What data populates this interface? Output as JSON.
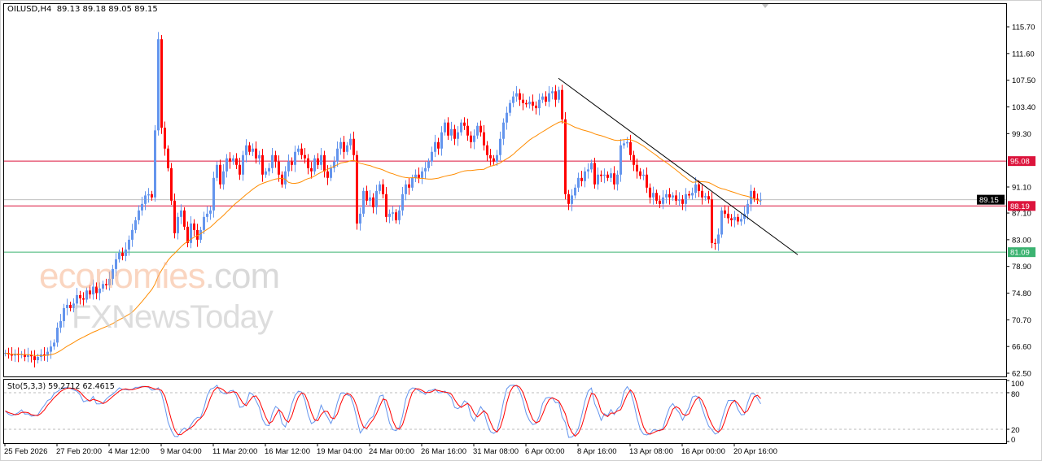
{
  "header": {
    "symbol": "OILUSD,H4",
    "ohlc": "89.13 89.18 89.05 89.15"
  },
  "indicator": {
    "label": "Sto(5,3,3) 59.2712 62.4615",
    "levels": [
      "100",
      "80",
      "20",
      "0"
    ]
  },
  "watermark": {
    "brand1": "economies",
    "brand1_suffix": ".com",
    "brand2": "FXNewsToday"
  },
  "colors": {
    "up": "#6495ED",
    "down": "#FF0000",
    "ma": "#FF8C00",
    "resistance": "#DC143C",
    "support": "#3CB371",
    "current": "#C0C0C0",
    "stoch_main": "#6495ED",
    "stoch_signal": "#FF0000"
  },
  "chart_data": {
    "type": "candlestick",
    "symbol": "OILUSD",
    "timeframe": "H4",
    "ylim": [
      62.5,
      115.7
    ],
    "y_ticks": [
      "115.70",
      "111.60",
      "107.50",
      "103.40",
      "99.30",
      "91.10",
      "87.10",
      "83.00",
      "78.90",
      "74.80",
      "70.70",
      "66.60",
      "62.50"
    ],
    "x_ticks": [
      {
        "bar": 0,
        "label": "25 Feb 2026"
      },
      {
        "bar": 16,
        "label": "27 Feb 20:00"
      },
      {
        "bar": 32,
        "label": "4 Mar 12:00"
      },
      {
        "bar": 48,
        "label": "9 Mar 04:00"
      },
      {
        "bar": 64,
        "label": "11 Mar 20:00"
      },
      {
        "bar": 80,
        "label": "16 Mar 12:00"
      },
      {
        "bar": 96,
        "label": "19 Mar 04:00"
      },
      {
        "bar": 112,
        "label": "24 Mar 00:00"
      },
      {
        "bar": 128,
        "label": "26 Mar 16:00"
      },
      {
        "bar": 144,
        "label": "31 Mar 08:00"
      },
      {
        "bar": 160,
        "label": "6 Apr 00:00"
      },
      {
        "bar": 176,
        "label": "8 Apr 16:00"
      },
      {
        "bar": 192,
        "label": "13 Apr 08:00"
      },
      {
        "bar": 208,
        "label": "16 Apr 00:00"
      },
      {
        "bar": 224,
        "label": "20 Apr 16:00"
      }
    ],
    "closes": [
      65.6,
      65.4,
      65.2,
      65.5,
      65.3,
      65.4,
      65.0,
      65.3,
      65.1,
      64.5,
      65.0,
      65.4,
      65.2,
      65.8,
      66.6,
      67.2,
      69.5,
      70.5,
      72.5,
      73.0,
      72.5,
      73.2,
      74.5,
      74.0,
      73.8,
      75.2,
      74.6,
      75.8,
      74.8,
      75.5,
      76.2,
      76.0,
      77.0,
      78.5,
      80.0,
      81.0,
      80.5,
      81.5,
      83.0,
      84.5,
      86.0,
      87.5,
      88.5,
      89.8,
      90.0,
      89.5,
      99.8,
      113.8,
      100.2,
      97.0,
      94.0,
      89.0,
      84.0,
      86.5,
      87.5,
      85.0,
      82.5,
      85.5,
      84.5,
      83.0,
      84.5,
      86.5,
      87.0,
      87.5,
      92.5,
      94.5,
      91.5,
      93.5,
      95.5,
      95.0,
      95.5,
      94.5,
      93.0,
      96.0,
      97.5,
      96.5,
      97.0,
      95.5,
      96.0,
      93.0,
      93.5,
      94.0,
      96.0,
      95.0,
      93.0,
      91.5,
      93.5,
      95.0,
      94.5,
      96.5,
      97.0,
      96.0,
      95.5,
      94.0,
      93.5,
      95.5,
      94.5,
      96.0,
      93.5,
      92.5,
      94.0,
      95.0,
      97.0,
      98.0,
      96.5,
      97.5,
      98.5,
      96.0,
      85.5,
      87.0,
      90.5,
      89.0,
      89.5,
      88.0,
      90.5,
      91.5,
      90.0,
      86.5,
      87.0,
      87.2,
      86.0,
      87.5,
      90.0,
      91.5,
      91.0,
      92.5,
      93.0,
      92.5,
      93.5,
      94.0,
      95.0,
      96.5,
      98.0,
      97.0,
      99.5,
      101.0,
      99.0,
      100.0,
      98.5,
      99.5,
      101.0,
      100.5,
      99.0,
      98.0,
      99.0,
      100.5,
      99.5,
      97.5,
      96.0,
      95.5,
      95.0,
      96.0,
      98.5,
      101.0,
      102.5,
      104.0,
      105.0,
      105.5,
      104.5,
      104.0,
      103.8,
      104.2,
      103.6,
      103.2,
      104.5,
      105.0,
      104.2,
      105.5,
      105.8,
      104.5,
      106.0,
      101.5,
      90.0,
      88.5,
      89.8,
      91.0,
      92.5,
      92.0,
      93.5,
      93.8,
      94.8,
      91.5,
      93.0,
      92.8,
      93.0,
      92.5,
      93.2,
      91.5,
      93.0,
      97.5,
      97.8,
      98.0,
      96.0,
      94.5,
      93.5,
      92.8,
      93.0,
      91.0,
      89.5,
      90.2,
      89.0,
      88.5,
      89.5,
      90.0,
      89.5,
      89.8,
      89.0,
      89.2,
      88.5,
      90.0,
      89.8,
      90.2,
      91.5,
      90.5,
      89.5,
      89.7,
      89.2,
      82.5,
      82.4,
      83.8,
      87.5,
      87.0,
      86.3,
      86.0,
      86.5,
      85.8,
      86.2,
      87.0,
      88.5,
      90.5,
      89.3,
      89.13,
      89.15
    ],
    "ma_period": 40,
    "levels": [
      {
        "label": "95.08",
        "price": 95.08,
        "kind": "resistance"
      },
      {
        "label": "88.19",
        "price": 88.19,
        "kind": "resistance"
      },
      {
        "label": "81.09",
        "price": 81.09,
        "kind": "support"
      },
      {
        "label": "89.15",
        "price": 89.15,
        "kind": "current"
      }
    ],
    "trendline": {
      "start": {
        "bar": 170,
        "price": 107.8
      },
      "end": {
        "bar": 243.5,
        "price": 80.7
      }
    }
  }
}
